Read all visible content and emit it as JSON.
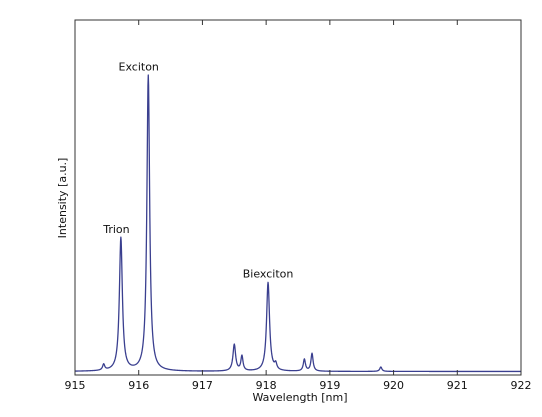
{
  "chart_data": {
    "type": "line",
    "title": "",
    "xlabel": "Wavelength [nm]",
    "ylabel": "Intensity [a.u.]",
    "xlim": [
      915,
      922
    ],
    "ylim": [
      0,
      1.2
    ],
    "xticks": [
      915,
      916,
      917,
      918,
      919,
      920,
      921,
      922
    ],
    "xtick_labels": [
      "915",
      "916",
      "917",
      "918",
      "919",
      "920",
      "921",
      "922"
    ],
    "yticks": [],
    "grid": false,
    "legend": "none",
    "line_color": "#3a3f8f",
    "baseline": 0.012,
    "peaks": [
      {
        "x": 915.45,
        "y": 0.02,
        "width": 0.02
      },
      {
        "x": 915.72,
        "y": 0.45,
        "width": 0.028
      },
      {
        "x": 916.15,
        "y": 1.0,
        "width": 0.026
      },
      {
        "x": 917.5,
        "y": 0.09,
        "width": 0.025
      },
      {
        "x": 917.62,
        "y": 0.05,
        "width": 0.02
      },
      {
        "x": 918.03,
        "y": 0.3,
        "width": 0.028
      },
      {
        "x": 918.15,
        "y": 0.02,
        "width": 0.02
      },
      {
        "x": 918.6,
        "y": 0.04,
        "width": 0.02
      },
      {
        "x": 918.72,
        "y": 0.06,
        "width": 0.02
      },
      {
        "x": 919.8,
        "y": 0.015,
        "width": 0.02
      }
    ],
    "annotations": [
      {
        "text": "Exciton",
        "x": 916.0,
        "y": 1.03
      },
      {
        "text": "Trion",
        "x": 915.65,
        "y": 0.48
      },
      {
        "text": "Biexciton",
        "x": 918.03,
        "y": 0.33
      }
    ]
  }
}
